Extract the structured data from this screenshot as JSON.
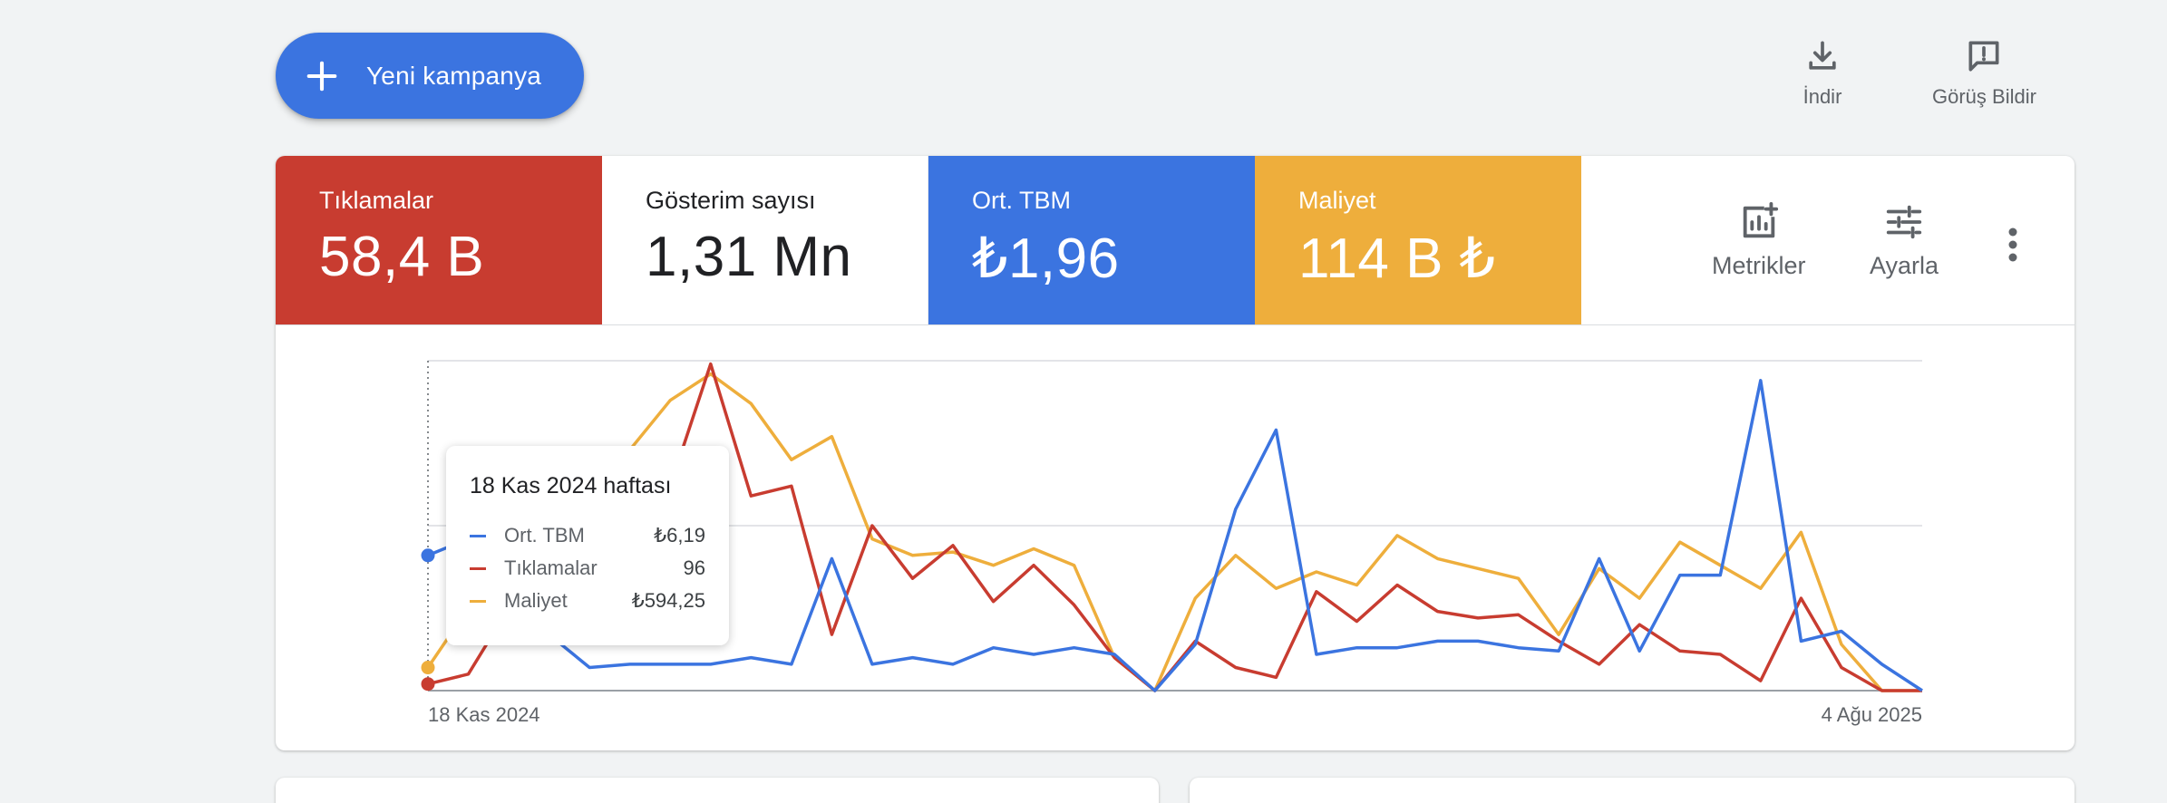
{
  "toolbar": {
    "new_campaign_label": "Yeni kampanya",
    "download_label": "İndir",
    "feedback_label": "Görüş Bildir"
  },
  "metrics": [
    {
      "label": "Tıklamalar",
      "value": "58,4 B",
      "bg": "#c83c30",
      "fg": "#ffffff"
    },
    {
      "label": "Gösterim sayısı",
      "value": "1,31 Mn",
      "bg": "#ffffff",
      "fg": "#202124"
    },
    {
      "label": "Ort. TBM",
      "value": "₺1,96",
      "bg": "#3b74e0",
      "fg": "#ffffff"
    },
    {
      "label": "Maliyet",
      "value": "114 B ₺",
      "bg": "#eeae3c",
      "fg": "#ffffff"
    }
  ],
  "tools": {
    "metrics_label": "Metrikler",
    "adjust_label": "Ayarla"
  },
  "tooltip": {
    "title": "18 Kas 2024 haftası",
    "rows": [
      {
        "name": "Ort. TBM",
        "value": "₺6,19",
        "color": "#3b74e0"
      },
      {
        "name": "Tıklamalar",
        "value": "96",
        "color": "#c83c30"
      },
      {
        "name": "Maliyet",
        "value": "₺594,25",
        "color": "#eeae3c"
      }
    ]
  },
  "chart_data": {
    "type": "line",
    "x_start_label": "18 Kas 2024",
    "x_end_label": "4 Ağu 2025",
    "grid": true,
    "ylim": [
      0,
      100
    ],
    "series": [
      {
        "name": "Ort. TBM",
        "color": "#3b74e0",
        "values": [
          41,
          46,
          45,
          17,
          7,
          8,
          8,
          8,
          10,
          8,
          40,
          8,
          10,
          8,
          13,
          11,
          13,
          11,
          0,
          14,
          55,
          79,
          11,
          13,
          13,
          15,
          15,
          13,
          12,
          40,
          12,
          35,
          35,
          94,
          15,
          18,
          8,
          0
        ]
      },
      {
        "name": "Tıklamalar",
        "color": "#c83c30",
        "values": [
          2,
          5,
          25,
          38,
          52,
          55,
          62,
          99,
          59,
          62,
          17,
          50,
          34,
          44,
          27,
          38,
          26,
          10,
          0,
          15,
          7,
          4,
          30,
          21,
          32,
          24,
          22,
          23,
          15,
          8,
          20,
          12,
          11,
          3,
          28,
          7,
          0,
          0
        ]
      },
      {
        "name": "Maliyet",
        "color": "#eeae3c",
        "values": [
          7,
          25,
          35,
          49,
          62,
          73,
          88,
          96,
          87,
          70,
          77,
          46,
          41,
          42,
          38,
          43,
          38,
          10,
          0,
          28,
          41,
          31,
          36,
          32,
          47,
          40,
          37,
          34,
          17,
          37,
          28,
          45,
          38,
          31,
          48,
          14,
          0,
          0
        ]
      }
    ]
  }
}
